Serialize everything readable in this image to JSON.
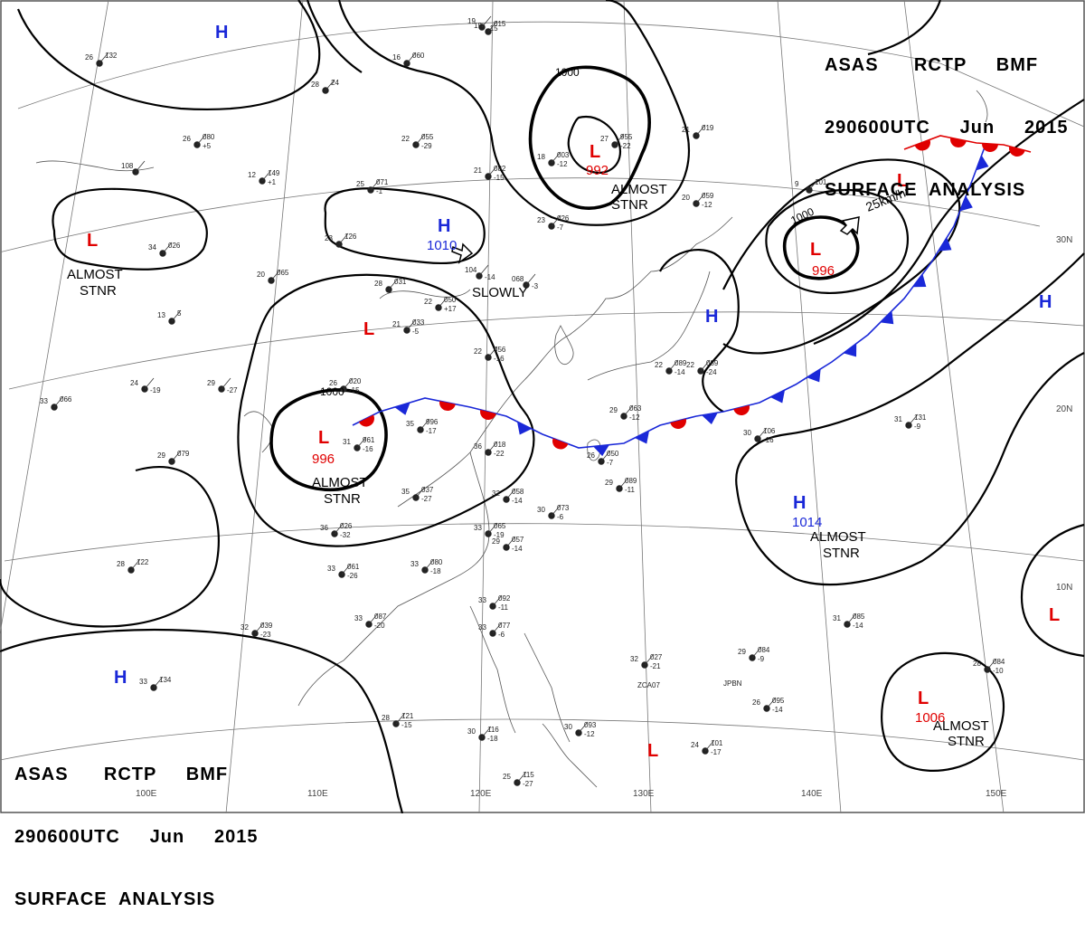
{
  "header_top": {
    "line1": "ASAS      RCTP     BMF",
    "line2": "290600UTC     Jun     2015",
    "line3": "SURFACE  ANALYSIS"
  },
  "header_bottom": {
    "line1": "ASAS      RCTP     BMF",
    "line2": "290600UTC     Jun     2015",
    "line3": "SURFACE  ANALYSIS"
  },
  "colors": {
    "low": "#e00000",
    "high": "#1a28d8",
    "warm_front": "#e00000",
    "cold_front": "#1a28d8",
    "isobar": "#000000",
    "grid": "#777777"
  },
  "pressure_systems": [
    {
      "type": "L",
      "pressure": "992",
      "note": "ALMOST\nSTNR"
    },
    {
      "type": "L",
      "pressure": "996",
      "note": ""
    },
    {
      "type": "L",
      "pressure": "996",
      "note": "ALMOST\nSTNR"
    },
    {
      "type": "L",
      "pressure": "1006",
      "note": "ALMOST\nSTNR"
    },
    {
      "type": "L",
      "pressure": "",
      "note": "ALMOST\nSTNR"
    },
    {
      "type": "L",
      "pressure": "",
      "note": ""
    },
    {
      "type": "L",
      "pressure": "",
      "note": ""
    },
    {
      "type": "L",
      "pressure": "",
      "note": ""
    },
    {
      "type": "H",
      "pressure": "1010",
      "note": "SLOWLY"
    },
    {
      "type": "H",
      "pressure": "1014",
      "note": "ALMOST\nSTNR"
    },
    {
      "type": "H",
      "pressure": "",
      "note": ""
    },
    {
      "type": "H",
      "pressure": "",
      "note": ""
    },
    {
      "type": "H",
      "pressure": "",
      "note": ""
    },
    {
      "type": "H",
      "pressure": "",
      "note": ""
    }
  ],
  "motion_labels": {
    "northeast_low": "25km/hr"
  },
  "isobar_labels": [
    "1000",
    "1000",
    "1000"
  ],
  "longitude_labels": [
    "100E",
    "110E",
    "120E",
    "130E",
    "140E",
    "150E"
  ],
  "latitude_labels": [
    "30N",
    "20N",
    "10N"
  ],
  "station_labels": [
    "JPBN",
    "ZCA07"
  ],
  "stations": [
    {
      "t": "26",
      "p": "132",
      "d": ""
    },
    {
      "t": "28",
      "p": "24",
      "d": ""
    },
    {
      "t": "26",
      "p": "080",
      "d": "+5"
    },
    {
      "t": "108",
      "p": "",
      "d": ""
    },
    {
      "t": "34",
      "p": "026",
      "d": ""
    },
    {
      "t": "20",
      "p": "065",
      "d": ""
    },
    {
      "t": "12",
      "p": "149",
      "d": "+1"
    },
    {
      "t": "22",
      "p": "055",
      "d": "-29"
    },
    {
      "t": "25",
      "p": "071",
      "d": "-1"
    },
    {
      "t": "23",
      "p": "126",
      "d": ""
    },
    {
      "t": "16",
      "p": "060",
      "d": ""
    },
    {
      "t": "19",
      "p": "015",
      "d": ""
    },
    {
      "t": "27",
      "p": "955",
      "d": "-22"
    },
    {
      "t": "18",
      "p": "003",
      "d": "-12"
    },
    {
      "t": "21",
      "p": "082",
      "d": "-15"
    },
    {
      "t": "23",
      "p": "026",
      "d": "-7"
    },
    {
      "t": "21",
      "p": "019",
      "d": ""
    },
    {
      "t": "9",
      "p": "101",
      "d": ""
    },
    {
      "t": "13",
      "p": "5",
      "d": ""
    },
    {
      "t": "28",
      "p": "031",
      "d": ""
    },
    {
      "t": "21",
      "p": "033",
      "d": "-5"
    },
    {
      "t": "22",
      "p": "050",
      "d": "+17"
    },
    {
      "t": "104",
      "p": "",
      "d": "-14"
    },
    {
      "t": "068",
      "p": "",
      "d": "-3"
    },
    {
      "t": "33",
      "p": "066",
      "d": ""
    },
    {
      "t": "24",
      "p": "",
      "d": "-19"
    },
    {
      "t": "29",
      "p": "",
      "d": "-27"
    },
    {
      "t": "26",
      "p": "020",
      "d": "-15"
    },
    {
      "t": "35",
      "p": "996",
      "d": "-17"
    },
    {
      "t": "31",
      "p": "961",
      "d": "-16"
    },
    {
      "t": "22",
      "p": "056",
      "d": "-16"
    },
    {
      "t": "36",
      "p": "018",
      "d": "-22"
    },
    {
      "t": "26",
      "p": "050",
      "d": "-7"
    },
    {
      "t": "29",
      "p": "063",
      "d": "-12"
    },
    {
      "t": "22",
      "p": "089",
      "d": "-24"
    },
    {
      "t": "29",
      "p": "079",
      "d": ""
    },
    {
      "t": "35",
      "p": "037",
      "d": "-27"
    },
    {
      "t": "32",
      "p": "058",
      "d": "-14"
    },
    {
      "t": "30",
      "p": "073",
      "d": "-6"
    },
    {
      "t": "29",
      "p": "089",
      "d": "-11"
    },
    {
      "t": "33",
      "p": "065",
      "d": "-19"
    },
    {
      "t": "29",
      "p": "057",
      "d": "-14"
    },
    {
      "t": "36",
      "p": "026",
      "d": "-32"
    },
    {
      "t": "33",
      "p": "061",
      "d": "-26"
    },
    {
      "t": "33",
      "p": "080",
      "d": "-18"
    },
    {
      "t": "28",
      "p": "122",
      "d": ""
    },
    {
      "t": "33",
      "p": "087",
      "d": "-20"
    },
    {
      "t": "32",
      "p": "039",
      "d": "-23"
    },
    {
      "t": "33",
      "p": "092",
      "d": "-11"
    },
    {
      "t": "33",
      "p": "077",
      "d": "-6"
    },
    {
      "t": "32",
      "p": "027",
      "d": "-21"
    },
    {
      "t": "29",
      "p": "084",
      "d": "-9"
    },
    {
      "t": "30",
      "p": "106",
      "d": "-16"
    },
    {
      "t": "31",
      "p": "131",
      "d": "-9"
    },
    {
      "t": "31",
      "p": "085",
      "d": "-14"
    },
    {
      "t": "33",
      "p": "134",
      "d": ""
    },
    {
      "t": "28",
      "p": "121",
      "d": "-15"
    },
    {
      "t": "30",
      "p": "116",
      "d": "-18"
    },
    {
      "t": "30",
      "p": "093",
      "d": "-12"
    },
    {
      "t": "24",
      "p": "101",
      "d": "-17"
    },
    {
      "t": "26",
      "p": "095",
      "d": "-14"
    },
    {
      "t": "28",
      "p": "084",
      "d": "-10"
    },
    {
      "t": "25",
      "p": "115",
      "d": "-27"
    },
    {
      "t": "19",
      "p": "",
      "d": "-15"
    },
    {
      "t": "22",
      "p": "089",
      "d": "-14"
    },
    {
      "t": "20",
      "p": "059",
      "d": "-12"
    }
  ]
}
